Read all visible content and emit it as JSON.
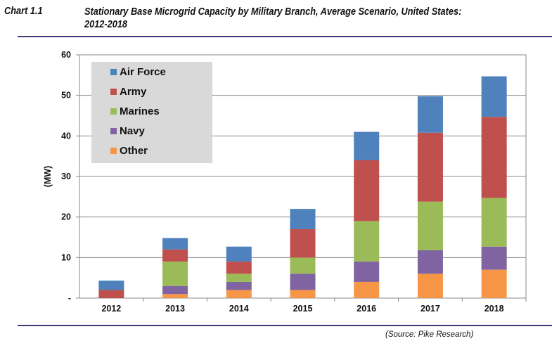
{
  "header": {
    "label": "Chart 1.1",
    "title_line1": "Stationary Base Microgrid Capacity by Military Branch, Average Scenario, United States:",
    "title_line2": "2012-2018"
  },
  "source": "(Source: Pike Research)",
  "chart_data": {
    "type": "bar",
    "stacked": true,
    "title": "Stationary Base Microgrid Capacity by Military Branch, Average Scenario, United States: 2012-2018",
    "xlabel": "",
    "ylabel": "(MW)",
    "ylim": [
      0,
      60
    ],
    "yticks": [
      0,
      10,
      20,
      30,
      40,
      50,
      60
    ],
    "ytick_labels": [
      "-",
      "10",
      "20",
      "30",
      "40",
      "50",
      "60"
    ],
    "grid": true,
    "legend": "top-left",
    "categories": [
      "2012",
      "2013",
      "2014",
      "2015",
      "2016",
      "2017",
      "2018"
    ],
    "series": [
      {
        "name": "Other",
        "color": "#F79646",
        "values": [
          0,
          1,
          2,
          2,
          4,
          6,
          7
        ]
      },
      {
        "name": "Navy",
        "color": "#8064A2",
        "values": [
          0,
          2,
          2,
          4,
          5,
          5.8,
          5.7
        ]
      },
      {
        "name": "Marines",
        "color": "#9BBB59",
        "values": [
          0,
          6,
          2,
          4,
          10,
          12,
          12
        ]
      },
      {
        "name": "Army",
        "color": "#C0504D",
        "values": [
          2,
          3,
          3,
          7,
          15,
          17,
          20
        ]
      },
      {
        "name": "Air Force",
        "color": "#4F81BD",
        "values": [
          2.3,
          2.8,
          3.7,
          5,
          7,
          9,
          10
        ]
      }
    ],
    "legend_order": [
      "Air Force",
      "Army",
      "Marines",
      "Navy",
      "Other"
    ]
  }
}
